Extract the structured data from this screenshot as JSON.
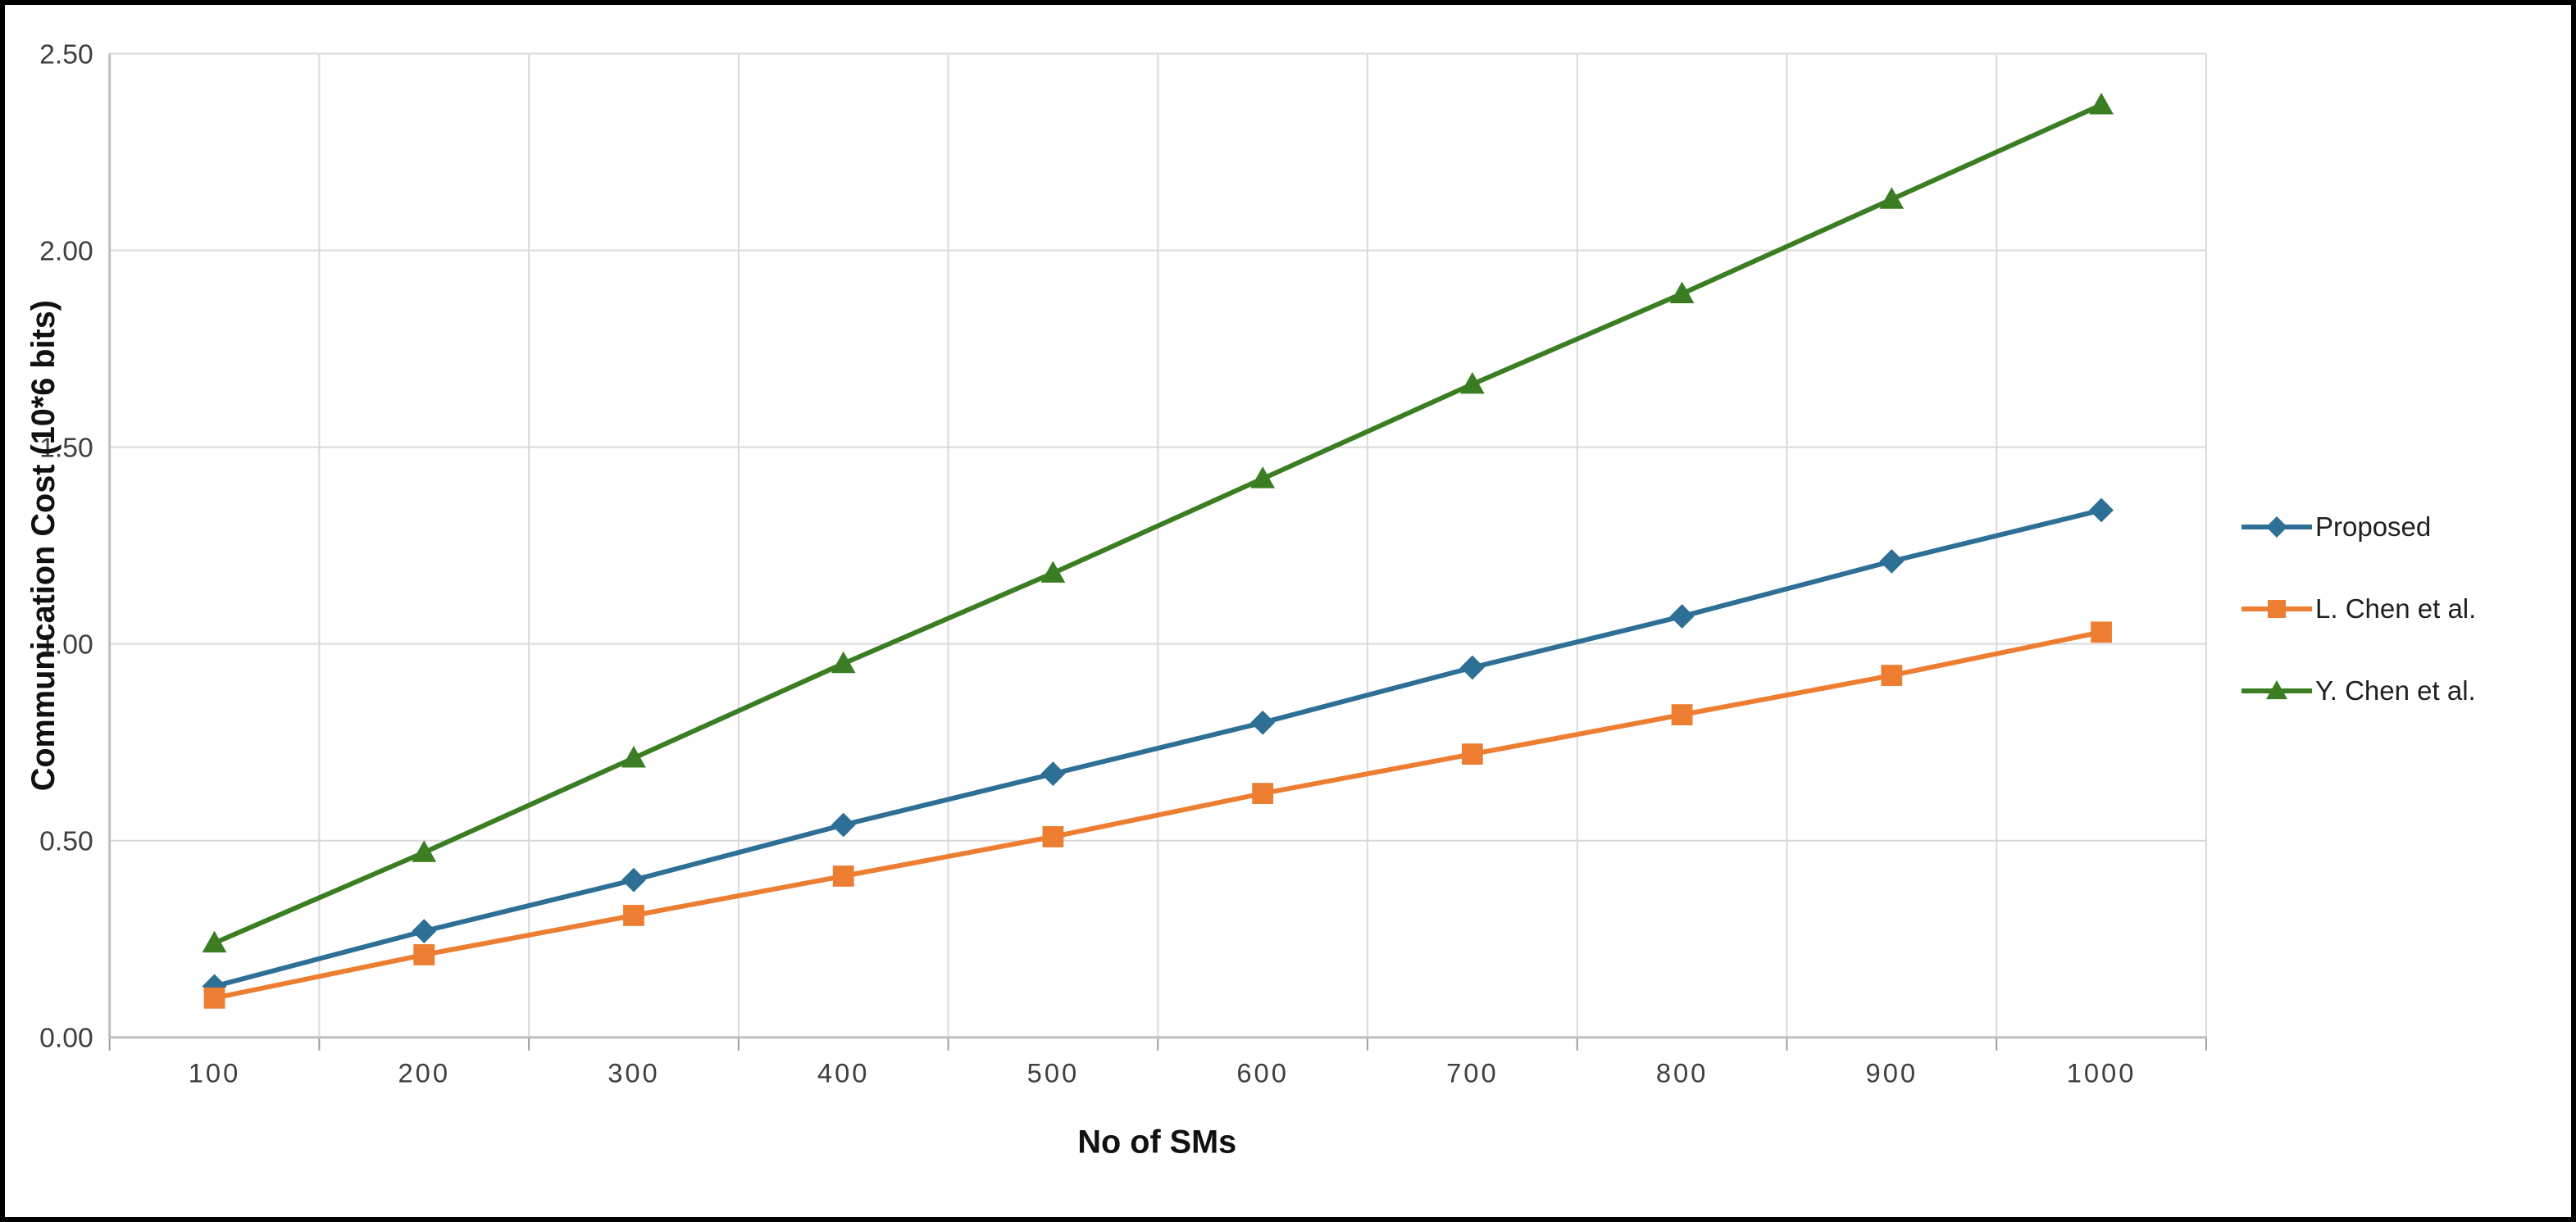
{
  "chart_data": {
    "type": "line",
    "title": "",
    "xlabel": "No of SMs",
    "ylabel": "Communication Cost (10*6 bits)",
    "x": [
      100,
      200,
      300,
      400,
      500,
      600,
      700,
      800,
      900,
      1000
    ],
    "series": [
      {
        "name": "Proposed",
        "marker": "diamond",
        "color": "#2E6F96",
        "values": [
          0.13,
          0.27,
          0.4,
          0.54,
          0.67,
          0.8,
          0.94,
          1.07,
          1.21,
          1.34
        ]
      },
      {
        "name": "L. Chen et al.",
        "marker": "square",
        "color": "#ED7D31",
        "values": [
          0.1,
          0.21,
          0.31,
          0.41,
          0.51,
          0.62,
          0.72,
          0.82,
          0.92,
          1.03
        ]
      },
      {
        "name": "Y. Chen et al.",
        "marker": "triangle",
        "color": "#3B7D23",
        "values": [
          0.24,
          0.47,
          0.71,
          0.95,
          1.18,
          1.42,
          1.66,
          1.89,
          2.13,
          2.37
        ]
      }
    ],
    "ylim": [
      0,
      2.5
    ],
    "ytick_step": 0.5,
    "ytick_labels": [
      "0.00",
      "0.50",
      "1.00",
      "1.50",
      "2.00",
      "2.50"
    ],
    "xtick_labels": [
      "100",
      "200",
      "300",
      "400",
      "500",
      "600",
      "700",
      "800",
      "900",
      "1000"
    ],
    "grid": true,
    "legend_position": "right",
    "colors": {
      "gridline": "#d9d9d9",
      "axis_line": "#bfbfbf",
      "tick_label": "#3f3f3f",
      "frame_border": "#000000"
    }
  }
}
